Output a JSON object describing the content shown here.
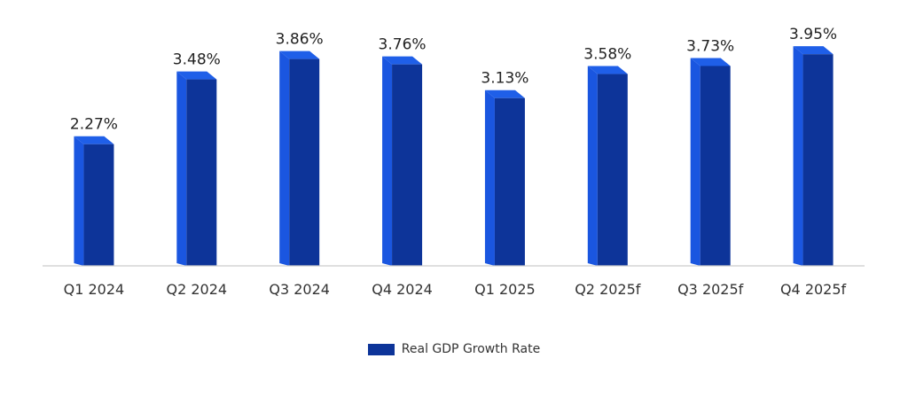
{
  "chart_data": {
    "type": "bar",
    "categories": [
      "Q1 2024",
      "Q2 2024",
      "Q3 2024",
      "Q4 2024",
      "Q1 2025",
      "Q2 2025f",
      "Q3 2025f",
      "Q4 2025f"
    ],
    "series": [
      {
        "name": "Real GDP Growth Rate",
        "values": [
          2.27,
          3.48,
          3.86,
          3.76,
          3.13,
          3.58,
          3.73,
          3.95
        ],
        "labels": [
          "2.27%",
          "3.48%",
          "3.86%",
          "3.76%",
          "3.13%",
          "3.58%",
          "3.73%",
          "3.95%"
        ]
      }
    ],
    "ylim": [
      0,
      4.3
    ],
    "grid": false,
    "legend_position": "bottom",
    "bar_style": "3d",
    "colors": {
      "front": "#0d3499",
      "side": "#1a56e0",
      "top": "#1f5fe8",
      "axis": "#cccccc"
    }
  }
}
